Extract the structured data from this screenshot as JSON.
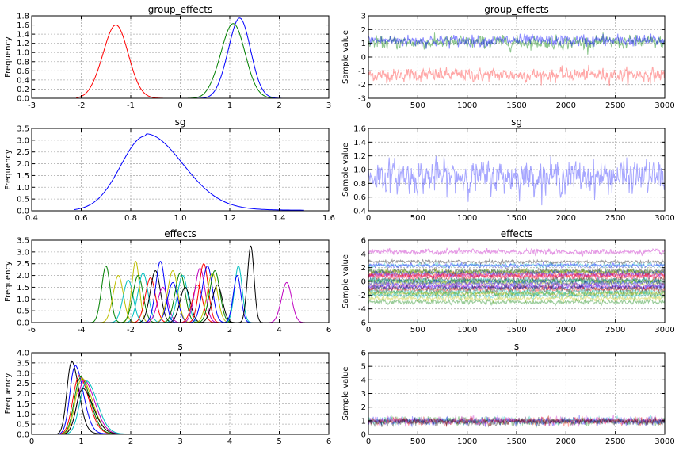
{
  "colors": {
    "blue": "#0000ff",
    "green": "#008000",
    "red": "#ff0000",
    "cyan": "#00bfbf",
    "magenta": "#bf00bf",
    "olive": "#bfbf00",
    "black": "#000000",
    "grid": "#b0b0b0"
  },
  "chart_data": [
    {
      "id": "group-effects-density",
      "type": "line",
      "title": "group_effects",
      "xlabel": "",
      "ylabel": "Frequency",
      "xlim": [
        -3,
        3
      ],
      "ylim": [
        0,
        1.8
      ],
      "xticks": [
        "-3",
        "-2",
        "-1",
        "0",
        "1",
        "2",
        "3"
      ],
      "yticks": [
        "0.0",
        "0.2",
        "0.4",
        "0.6",
        "0.8",
        "1.0",
        "1.2",
        "1.4",
        "1.6",
        "1.8"
      ],
      "grid": true,
      "series": [
        {
          "color": "red",
          "kind": "density",
          "mean": -1.3,
          "sd": 0.25,
          "peak": 1.6,
          "from": -2.1,
          "to": 0.3
        },
        {
          "color": "green",
          "kind": "density",
          "mean": 1.07,
          "sd": 0.24,
          "peak": 1.63,
          "from": 0.05,
          "to": 1.9
        },
        {
          "color": "blue",
          "kind": "density",
          "mean": 1.2,
          "sd": 0.22,
          "peak": 1.75,
          "from": 0.0,
          "to": 2.05
        }
      ]
    },
    {
      "id": "group-effects-trace",
      "type": "line",
      "title": "group_effects",
      "xlabel": "",
      "ylabel": "Sample value",
      "xlim": [
        0,
        3000
      ],
      "ylim": [
        -3,
        3
      ],
      "xticks": [
        "0",
        "500",
        "1000",
        "1500",
        "2000",
        "2500",
        "3000"
      ],
      "yticks": [
        "-3",
        "-2",
        "-1",
        "0",
        "1",
        "2",
        "3"
      ],
      "grid": true,
      "series": [
        {
          "color": "red",
          "kind": "trace",
          "mean": -1.3,
          "noise": 0.25,
          "alpha": 0.35
        },
        {
          "color": "green",
          "kind": "trace",
          "mean": 1.07,
          "noise": 0.24,
          "alpha": 0.45
        },
        {
          "color": "blue",
          "kind": "trace",
          "mean": 1.2,
          "noise": 0.22,
          "alpha": 0.45
        }
      ]
    },
    {
      "id": "sg-density",
      "type": "line",
      "title": "sg",
      "xlabel": "",
      "ylabel": "Frequency",
      "xlim": [
        0.4,
        1.6
      ],
      "ylim": [
        0,
        3.5
      ],
      "xticks": [
        "0.4",
        "0.6",
        "0.8",
        "1.0",
        "1.2",
        "1.4",
        "1.6"
      ],
      "yticks": [
        "0.0",
        "0.5",
        "1.0",
        "1.5",
        "2.0",
        "2.5",
        "3.0",
        "3.5"
      ],
      "grid": true,
      "series": [
        {
          "color": "blue",
          "kind": "density-skew",
          "mean": 0.86,
          "sdl": 0.1,
          "sdr": 0.15,
          "peak": 3.18,
          "from": 0.57,
          "to": 1.5
        }
      ]
    },
    {
      "id": "sg-trace",
      "type": "line",
      "title": "sg",
      "xlabel": "",
      "ylabel": "Sample value",
      "xlim": [
        0,
        3000
      ],
      "ylim": [
        0.4,
        1.6
      ],
      "xticks": [
        "0",
        "500",
        "1000",
        "1500",
        "2000",
        "2500",
        "3000"
      ],
      "yticks": [
        "0.4",
        "0.6",
        "0.8",
        "1.0",
        "1.2",
        "1.4",
        "1.6"
      ],
      "grid": true,
      "series": [
        {
          "color": "blue",
          "kind": "trace",
          "mean": 0.9,
          "noise": 0.12,
          "alpha": 0.35
        }
      ]
    },
    {
      "id": "effects-density",
      "type": "line",
      "title": "effects",
      "xlabel": "",
      "ylabel": "Frequency",
      "xlim": [
        -6,
        6
      ],
      "ylim": [
        0,
        3.5
      ],
      "xticks": [
        "-6",
        "-4",
        "-2",
        "0",
        "2",
        "4",
        "6"
      ],
      "yticks": [
        "0.0",
        "0.5",
        "1.0",
        "1.5",
        "2.0",
        "2.5",
        "3.0",
        "3.5"
      ],
      "grid": true,
      "series": [
        {
          "color": "green",
          "kind": "density",
          "mean": -3.0,
          "sd": 0.17,
          "peak": 2.4
        },
        {
          "color": "olive",
          "kind": "density",
          "mean": -2.5,
          "sd": 0.2,
          "peak": 2.0
        },
        {
          "color": "cyan",
          "kind": "density",
          "mean": -2.1,
          "sd": 0.2,
          "peak": 1.8
        },
        {
          "color": "olive",
          "kind": "density",
          "mean": -1.8,
          "sd": 0.15,
          "peak": 2.6
        },
        {
          "color": "green",
          "kind": "density",
          "mean": -1.7,
          "sd": 0.2,
          "peak": 2.0
        },
        {
          "color": "cyan",
          "kind": "density",
          "mean": -1.5,
          "sd": 0.2,
          "peak": 2.1
        },
        {
          "color": "red",
          "kind": "density",
          "mean": -1.2,
          "sd": 0.2,
          "peak": 1.9
        },
        {
          "color": "black",
          "kind": "density",
          "mean": -1.0,
          "sd": 0.2,
          "peak": 2.2
        },
        {
          "color": "blue",
          "kind": "density",
          "mean": -0.8,
          "sd": 0.18,
          "peak": 2.6
        },
        {
          "color": "magenta",
          "kind": "density",
          "mean": -0.7,
          "sd": 0.2,
          "peak": 1.5
        },
        {
          "color": "blue",
          "kind": "density",
          "mean": -0.3,
          "sd": 0.2,
          "peak": 1.7
        },
        {
          "color": "olive",
          "kind": "density",
          "mean": -0.3,
          "sd": 0.2,
          "peak": 2.2
        },
        {
          "color": "green",
          "kind": "density",
          "mean": 0.0,
          "sd": 0.2,
          "peak": 2.1
        },
        {
          "color": "cyan",
          "kind": "density",
          "mean": 0.1,
          "sd": 0.2,
          "peak": 2.0
        },
        {
          "color": "black",
          "kind": "density",
          "mean": 0.2,
          "sd": 0.2,
          "peak": 1.5
        },
        {
          "color": "red",
          "kind": "density",
          "mean": 0.7,
          "sd": 0.2,
          "peak": 1.6
        },
        {
          "color": "magenta",
          "kind": "density",
          "mean": 0.8,
          "sd": 0.2,
          "peak": 2.3
        },
        {
          "color": "red",
          "kind": "density",
          "mean": 0.95,
          "sd": 0.18,
          "peak": 2.5
        },
        {
          "color": "blue",
          "kind": "density",
          "mean": 1.1,
          "sd": 0.2,
          "peak": 2.4
        },
        {
          "color": "olive",
          "kind": "density",
          "mean": 1.3,
          "sd": 0.2,
          "peak": 2.1
        },
        {
          "color": "green",
          "kind": "density",
          "mean": 1.4,
          "sd": 0.2,
          "peak": 2.2
        },
        {
          "color": "black",
          "kind": "density",
          "mean": 1.5,
          "sd": 0.2,
          "peak": 1.6
        },
        {
          "color": "cyan",
          "kind": "density",
          "mean": 2.35,
          "sd": 0.15,
          "peak": 2.4
        },
        {
          "color": "blue",
          "kind": "density",
          "mean": 2.3,
          "sd": 0.15,
          "peak": 2.0
        },
        {
          "color": "black",
          "kind": "density",
          "mean": 2.85,
          "sd": 0.13,
          "peak": 3.25
        },
        {
          "color": "magenta",
          "kind": "density",
          "mean": 4.3,
          "sd": 0.2,
          "peak": 1.7
        }
      ]
    },
    {
      "id": "effects-trace",
      "type": "line",
      "title": "effects",
      "xlabel": "",
      "ylabel": "Sample value",
      "xlim": [
        0,
        3000
      ],
      "ylim": [
        -6,
        6
      ],
      "xticks": [
        "0",
        "500",
        "1000",
        "1500",
        "2000",
        "2500",
        "3000"
      ],
      "yticks": [
        "-6",
        "-4",
        "-2",
        "0",
        "2",
        "4",
        "6"
      ],
      "grid": true,
      "series": [
        {
          "color": "magenta",
          "kind": "trace",
          "mean": 4.3,
          "noise": 0.2,
          "alpha": 0.4
        },
        {
          "color": "black",
          "kind": "trace",
          "mean": 2.85,
          "noise": 0.13,
          "alpha": 0.4
        },
        {
          "color": "cyan",
          "kind": "trace",
          "mean": 2.35,
          "noise": 0.15,
          "alpha": 0.4
        },
        {
          "color": "blue",
          "kind": "trace",
          "mean": 2.3,
          "noise": 0.15,
          "alpha": 0.4
        },
        {
          "color": "black",
          "kind": "trace",
          "mean": 1.5,
          "noise": 0.2,
          "alpha": 0.4
        },
        {
          "color": "green",
          "kind": "trace",
          "mean": 1.4,
          "noise": 0.2,
          "alpha": 0.4
        },
        {
          "color": "olive",
          "kind": "trace",
          "mean": 1.3,
          "noise": 0.2,
          "alpha": 0.4
        },
        {
          "color": "blue",
          "kind": "trace",
          "mean": 1.1,
          "noise": 0.2,
          "alpha": 0.4
        },
        {
          "color": "red",
          "kind": "trace",
          "mean": 0.95,
          "noise": 0.18,
          "alpha": 0.4
        },
        {
          "color": "magenta",
          "kind": "trace",
          "mean": 0.8,
          "noise": 0.2,
          "alpha": 0.4
        },
        {
          "color": "red",
          "kind": "trace",
          "mean": 0.7,
          "noise": 0.2,
          "alpha": 0.4
        },
        {
          "color": "black",
          "kind": "trace",
          "mean": 0.2,
          "noise": 0.2,
          "alpha": 0.4
        },
        {
          "color": "cyan",
          "kind": "trace",
          "mean": 0.1,
          "noise": 0.2,
          "alpha": 0.4
        },
        {
          "color": "green",
          "kind": "trace",
          "mean": 0.0,
          "noise": 0.2,
          "alpha": 0.4
        },
        {
          "color": "olive",
          "kind": "trace",
          "mean": -0.3,
          "noise": 0.2,
          "alpha": 0.4
        },
        {
          "color": "blue",
          "kind": "trace",
          "mean": -0.3,
          "noise": 0.2,
          "alpha": 0.4
        },
        {
          "color": "magenta",
          "kind": "trace",
          "mean": -0.7,
          "noise": 0.2,
          "alpha": 0.4
        },
        {
          "color": "blue",
          "kind": "trace",
          "mean": -0.8,
          "noise": 0.18,
          "alpha": 0.4
        },
        {
          "color": "black",
          "kind": "trace",
          "mean": -1.0,
          "noise": 0.2,
          "alpha": 0.4
        },
        {
          "color": "red",
          "kind": "trace",
          "mean": -1.2,
          "noise": 0.2,
          "alpha": 0.4
        },
        {
          "color": "cyan",
          "kind": "trace",
          "mean": -1.5,
          "noise": 0.2,
          "alpha": 0.4
        },
        {
          "color": "green",
          "kind": "trace",
          "mean": -1.7,
          "noise": 0.2,
          "alpha": 0.4
        },
        {
          "color": "olive",
          "kind": "trace",
          "mean": -1.8,
          "noise": 0.15,
          "alpha": 0.4
        },
        {
          "color": "cyan",
          "kind": "trace",
          "mean": -2.1,
          "noise": 0.2,
          "alpha": 0.4
        },
        {
          "color": "olive",
          "kind": "trace",
          "mean": -2.5,
          "noise": 0.2,
          "alpha": 0.4
        },
        {
          "color": "green",
          "kind": "trace",
          "mean": -3.0,
          "noise": 0.17,
          "alpha": 0.4
        }
      ]
    },
    {
      "id": "s-density",
      "type": "line",
      "title": "s",
      "xlabel": "",
      "ylabel": "Frequency",
      "xlim": [
        0,
        6
      ],
      "ylim": [
        0,
        4.0
      ],
      "xticks": [
        "0",
        "1",
        "2",
        "3",
        "4",
        "5",
        "6"
      ],
      "yticks": [
        "0.0",
        "0.5",
        "1.0",
        "1.5",
        "2.0",
        "2.5",
        "3.0",
        "3.5",
        "4.0"
      ],
      "grid": true,
      "series": [
        {
          "color": "black",
          "kind": "density-skew",
          "mean": 0.8,
          "sdl": 0.09,
          "sdr": 0.15,
          "peak": 3.5,
          "from": 0.4,
          "to": 2.0
        },
        {
          "color": "blue",
          "kind": "density-skew",
          "mean": 0.87,
          "sdl": 0.1,
          "sdr": 0.17,
          "peak": 3.3,
          "from": 0.4,
          "to": 2.0
        },
        {
          "color": "red",
          "kind": "density-skew",
          "mean": 0.95,
          "sdl": 0.12,
          "sdr": 0.2,
          "peak": 2.8,
          "from": 0.4,
          "to": 2.2
        },
        {
          "color": "green",
          "kind": "density-skew",
          "mean": 0.98,
          "sdl": 0.12,
          "sdr": 0.2,
          "peak": 2.75,
          "from": 0.4,
          "to": 2.2
        },
        {
          "color": "olive",
          "kind": "density-skew",
          "mean": 1.0,
          "sdl": 0.12,
          "sdr": 0.22,
          "peak": 2.7,
          "from": 0.4,
          "to": 5.5
        },
        {
          "color": "magenta",
          "kind": "density-skew",
          "mean": 1.05,
          "sdl": 0.13,
          "sdr": 0.22,
          "peak": 2.6,
          "from": 0.4,
          "to": 2.4
        },
        {
          "color": "cyan",
          "kind": "density-skew",
          "mean": 1.1,
          "sdl": 0.13,
          "sdr": 0.22,
          "peak": 2.55,
          "from": 0.4,
          "to": 2.4
        },
        {
          "color": "black",
          "kind": "density-skew",
          "mean": 1.02,
          "sdl": 0.12,
          "sdr": 0.22,
          "peak": 2.2,
          "from": 0.4,
          "to": 2.4
        }
      ]
    },
    {
      "id": "s-trace",
      "type": "line",
      "title": "s",
      "xlabel": "",
      "ylabel": "Sample value",
      "xlim": [
        0,
        3000
      ],
      "ylim": [
        0,
        6
      ],
      "xticks": [
        "0",
        "500",
        "1000",
        "1500",
        "2000",
        "2500",
        "3000"
      ],
      "yticks": [
        "0",
        "1",
        "2",
        "3",
        "4",
        "5",
        "6"
      ],
      "grid": true,
      "series": [
        {
          "color": "cyan",
          "kind": "trace",
          "mean": 1.0,
          "noise": 0.15,
          "alpha": 0.35
        },
        {
          "color": "green",
          "kind": "trace",
          "mean": 0.98,
          "noise": 0.15,
          "alpha": 0.35
        },
        {
          "color": "magenta",
          "kind": "trace",
          "mean": 1.02,
          "noise": 0.15,
          "alpha": 0.35
        },
        {
          "color": "blue",
          "kind": "trace",
          "mean": 0.95,
          "noise": 0.15,
          "alpha": 0.35
        },
        {
          "color": "red",
          "kind": "trace",
          "mean": 0.97,
          "noise": 0.15,
          "alpha": 0.35
        },
        {
          "color": "black",
          "kind": "trace",
          "mean": 0.9,
          "noise": 0.13,
          "alpha": 0.35
        }
      ]
    }
  ]
}
